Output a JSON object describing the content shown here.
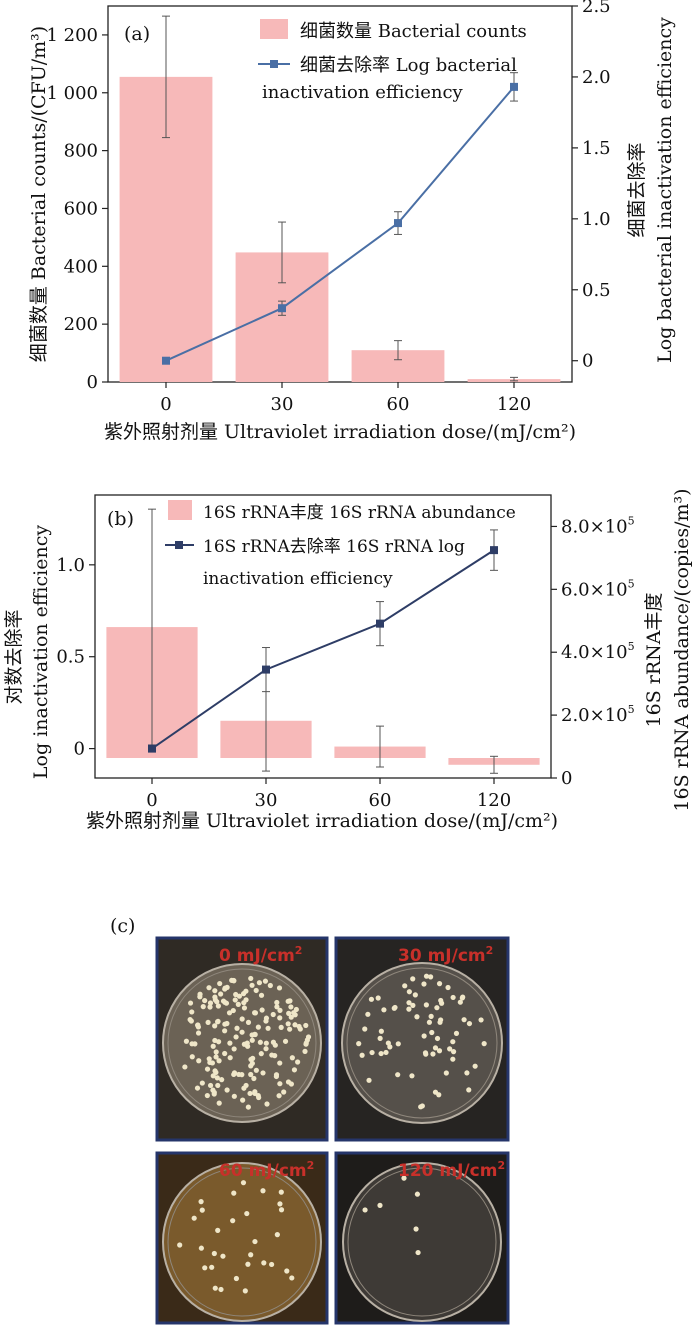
{
  "chart_data": [
    {
      "type": "bar+line",
      "panel_label": "(a)",
      "xlabel": "紫外照射剂量 Ultraviolet irradiation dose/(mJ/cm²)",
      "categories": [
        "0",
        "30",
        "60",
        "120"
      ],
      "ylabel": "细菌数量 Bacterial counts/(CFU/m³)",
      "ylabel_right_cn": "细菌去除率",
      "ylabel_right_en": "Log bacterial inactivation efficiency",
      "ylim": [
        0,
        1300
      ],
      "yticks": [
        0,
        200,
        400,
        600,
        800,
        1000,
        1200
      ],
      "ytick_labels": [
        "0",
        "200",
        "400",
        "600",
        "800",
        "1 000",
        "1 200"
      ],
      "y2lim": [
        -0.15,
        2.5
      ],
      "y2ticks": [
        0,
        0.5,
        1.0,
        1.5,
        2.0,
        2.5
      ],
      "y2tick_labels": [
        "0",
        "0.5",
        "1.0",
        "1.5",
        "2.0",
        "2.5"
      ],
      "series": [
        {
          "name_cn": "细菌数量",
          "name_en": "Bacterial counts",
          "kind": "bar",
          "axis": "left",
          "values": [
            1055,
            448,
            110,
            10
          ],
          "errors": [
            210,
            105,
            33,
            6
          ],
          "color": "#f7b9b9"
        },
        {
          "name_cn": "细菌去除率",
          "name_en": "Log bacterial inactivation efficiency",
          "kind": "line",
          "axis": "right",
          "values": [
            0,
            0.37,
            0.97,
            1.93
          ],
          "errors": [
            0,
            0.05,
            0.08,
            0.1
          ],
          "color": "#4a6fa5"
        }
      ],
      "legend_position": "top-right"
    },
    {
      "type": "bar+line",
      "panel_label": "(b)",
      "xlabel": "紫外照射剂量 Ultraviolet irradiation dose/(mJ/cm²)",
      "categories": [
        "0",
        "30",
        "60",
        "120"
      ],
      "ylabel_cn": "对数去除率",
      "ylabel_en": "Log inactivation efficiency",
      "ylabel_right_cn": "16S rRNA丰度",
      "ylabel_right_en": "16S rRNA abundance/(copies/m³)",
      "ylim": [
        -0.16,
        1.38
      ],
      "yticks": [
        0,
        0.5,
        1.0
      ],
      "ytick_labels": [
        "0",
        "0.5",
        "1.0"
      ],
      "y2lim": [
        0,
        9.0
      ],
      "y2ticks": [
        0,
        2,
        4,
        6,
        8
      ],
      "y2tick_labels": [
        "0",
        "2.0×10",
        "4.0×10",
        "6.0×10",
        "8.0×10"
      ],
      "y2tick_exponent": "5",
      "series": [
        {
          "name_cn": "16S rRNA丰度",
          "name_en": "16S rRNA abundance",
          "kind": "bar",
          "axis": "right",
          "values": [
            4.8,
            1.82,
            1.0,
            0.42
          ],
          "errors": [
            3.75,
            1.6,
            0.65,
            0.27
          ],
          "color": "#f7b9b9"
        },
        {
          "name_cn": "16S rRNA去除率",
          "name_en": "16S rRNA log inactivation efficiency",
          "kind": "line",
          "axis": "left",
          "values": [
            0,
            0.43,
            0.68,
            1.08
          ],
          "errors": [
            0,
            0.12,
            0.12,
            0.11
          ],
          "color": "#2e3d66"
        }
      ],
      "legend_lines": [
        "16S rRNA丰度 16S rRNA abundance",
        "16S rRNA去除率 16S rRNA log",
        "inactivation efficiency"
      ],
      "legend_position": "top-right"
    }
  ],
  "panel_c": {
    "label": "(c)",
    "plates": [
      {
        "dose_text": "0 mJ/cm",
        "exp": "2",
        "colonies": "dense"
      },
      {
        "dose_text": "30 mJ/cm",
        "exp": "2",
        "colonies": "moderate"
      },
      {
        "dose_text": "60 mJ/cm",
        "exp": "2",
        "colonies": "sparse"
      },
      {
        "dose_text": "120 mJ/cm",
        "exp": "2",
        "colonies": "very-sparse"
      }
    ],
    "text_color": "#c8302a",
    "frame_color": "#25356a"
  },
  "legend_a": {
    "bar_label": "细菌数量 Bacterial counts",
    "line_label_1": "细菌去除率 Log bacterial",
    "line_label_2": "inactivation  efficiency"
  }
}
